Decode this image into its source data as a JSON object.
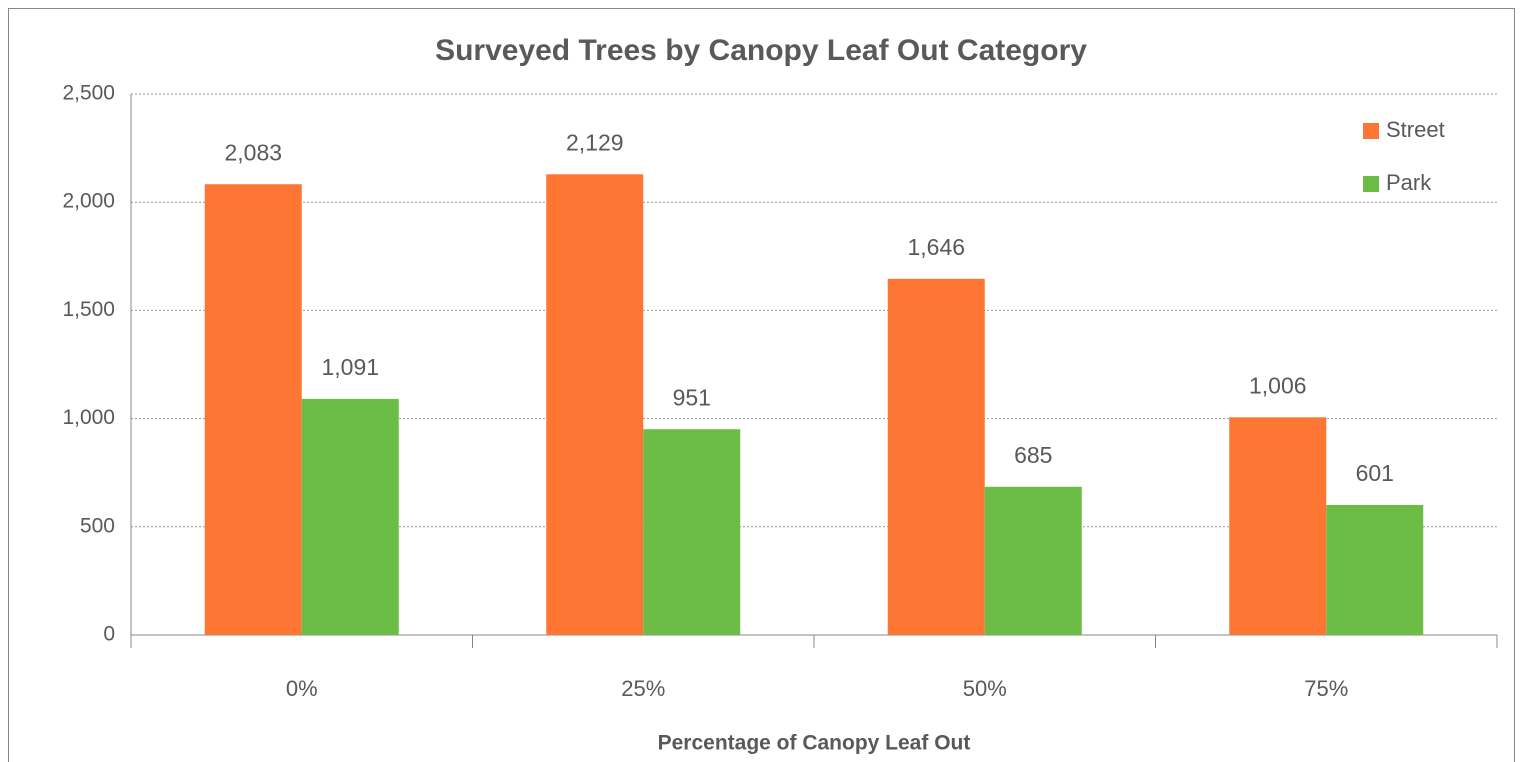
{
  "chart_data": {
    "type": "bar",
    "title": "Surveyed Trees by Canopy  Leaf Out Category",
    "x_label": "Percentage of Canopy Leaf Out",
    "categories": [
      "0%",
      "25%",
      "50%",
      "75%"
    ],
    "series": [
      {
        "name": "Street",
        "color": "#fe7634",
        "values": [
          2083,
          2129,
          1646,
          1006
        ],
        "value_labels": [
          "2,083",
          "2,129",
          "1,646",
          "1,006"
        ]
      },
      {
        "name": "Park",
        "color": "#6cbd45",
        "values": [
          1091,
          951,
          685,
          601
        ],
        "value_labels": [
          "1,091",
          "951",
          "685",
          "601"
        ]
      }
    ],
    "ylim": [
      0,
      2500
    ],
    "yticks": [
      0,
      500,
      {
        "value": 1000,
        "label": "1,000"
      },
      {
        "value": 1500,
        "label": "1,500"
      },
      {
        "value": 2000,
        "label": "2,000"
      },
      {
        "value": 2500,
        "label": "2,500"
      }
    ],
    "grid": true,
    "legend": "top-right"
  }
}
